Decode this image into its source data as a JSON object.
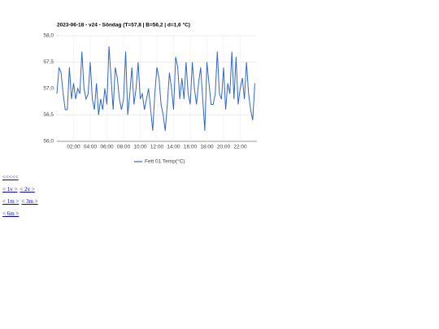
{
  "chart_data": {
    "type": "line",
    "title": "2023-06-18 - v24 - Söndag (T=57,8 | B=56,2 | d=1,6 °C)",
    "x": [
      0,
      0.25,
      0.5,
      0.75,
      1,
      1.25,
      1.5,
      1.75,
      2,
      2.25,
      2.5,
      2.75,
      3,
      3.25,
      3.5,
      3.75,
      4,
      4.25,
      4.5,
      4.75,
      5,
      5.25,
      5.5,
      5.75,
      6,
      6.25,
      6.5,
      6.75,
      7,
      7.25,
      7.5,
      7.75,
      8,
      8.25,
      8.5,
      8.75,
      9,
      9.25,
      9.5,
      9.75,
      10,
      10.25,
      10.5,
      10.75,
      11,
      11.25,
      11.5,
      11.75,
      12,
      12.25,
      12.5,
      12.75,
      13,
      13.25,
      13.5,
      13.75,
      14,
      14.25,
      14.5,
      14.75,
      15,
      15.25,
      15.5,
      15.75,
      16,
      16.25,
      16.5,
      16.75,
      17,
      17.25,
      17.5,
      17.75,
      18,
      18.25,
      18.5,
      18.75,
      19,
      19.25,
      19.5,
      19.75,
      20,
      20.25,
      20.5,
      20.75,
      21,
      21.25,
      21.5,
      21.75,
      22,
      22.25,
      22.5,
      22.75,
      23,
      23.25,
      23.5,
      23.75
    ],
    "series": [
      {
        "name": "Fett 01 Temp(°C)",
        "color": "#3366cc",
        "values": [
          56.9,
          57.4,
          57.3,
          56.9,
          56.6,
          56.6,
          57.4,
          56.8,
          57.1,
          56.8,
          57.0,
          56.9,
          57.7,
          57.0,
          56.8,
          56.9,
          57.5,
          56.8,
          56.6,
          57.1,
          56.5,
          56.8,
          56.6,
          57.0,
          56.7,
          57.8,
          57.2,
          56.6,
          57.4,
          57.2,
          56.8,
          56.6,
          56.8,
          57.7,
          56.5,
          56.9,
          57.4,
          56.7,
          57.0,
          57.5,
          56.8,
          56.9,
          56.6,
          56.8,
          57.0,
          56.6,
          56.2,
          56.9,
          57.4,
          57.2,
          56.7,
          56.5,
          56.2,
          56.7,
          57.3,
          57.0,
          56.6,
          57.6,
          57.4,
          56.8,
          57.2,
          56.8,
          57.5,
          56.9,
          56.7,
          57.5,
          57.0,
          56.7,
          57.1,
          57.4,
          56.8,
          56.2,
          57.5,
          57.1,
          56.7,
          56.7,
          56.9,
          57.7,
          56.9,
          56.8,
          57.4,
          56.6,
          57.1,
          56.9,
          57.7,
          56.8,
          57.6,
          56.7,
          57.0,
          57.2,
          56.8,
          57.5,
          56.9,
          56.6,
          56.4,
          57.1
        ]
      }
    ],
    "xlim": [
      0,
      24
    ],
    "xticks": [
      {
        "value": 2,
        "label": "02:00"
      },
      {
        "value": 4,
        "label": "04:00"
      },
      {
        "value": 6,
        "label": "06:00"
      },
      {
        "value": 8,
        "label": "08:00"
      },
      {
        "value": 10,
        "label": "10:00"
      },
      {
        "value": 12,
        "label": "12:00"
      },
      {
        "value": 14,
        "label": "14:00"
      },
      {
        "value": 16,
        "label": "16:00"
      },
      {
        "value": 18,
        "label": "18:00"
      },
      {
        "value": 20,
        "label": "20:00"
      },
      {
        "value": 22,
        "label": "22:00"
      }
    ],
    "ylim": [
      56,
      58
    ],
    "yticks": [
      {
        "value": 56,
        "label": "56,0"
      },
      {
        "value": 56.5,
        "label": "56,5"
      },
      {
        "value": 57,
        "label": "57,0"
      },
      {
        "value": 57.5,
        "label": "57,5"
      },
      {
        "value": 58,
        "label": "58,0"
      }
    ],
    "grid": true,
    "legend": "bottom"
  },
  "links": [
    [
      "<<<<<"
    ],
    [
      "< 1v >",
      "< 2v >"
    ],
    [
      "< 1m >",
      "< 3m >"
    ],
    [
      "< 6m >"
    ]
  ]
}
